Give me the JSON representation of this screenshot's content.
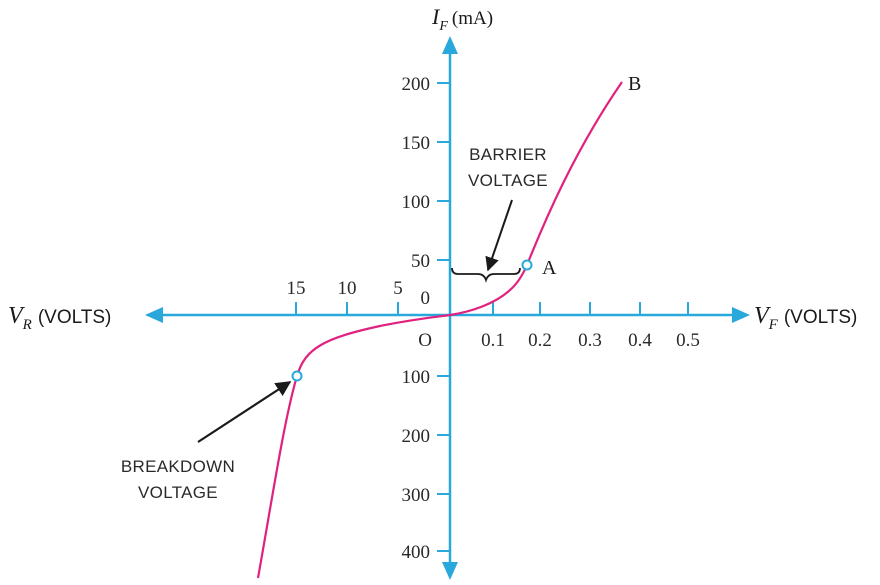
{
  "diagram": {
    "colors": {
      "axis": "#29a8dc",
      "curve": "#e0217f",
      "text": "#2a2a2a"
    },
    "axes": {
      "y_label_main": "I",
      "y_label_sub": "F",
      "y_label_unit": "(mA)",
      "x_pos_label_main": "V",
      "x_pos_label_sub": "F",
      "x_pos_label_unit": "(VOLTS)",
      "x_neg_label_main": "V",
      "x_neg_label_sub": "R",
      "x_neg_label_unit": "(VOLTS)",
      "origin_label": "O",
      "zero_label": "0"
    },
    "ticks": {
      "forward_voltage": [
        "0.1",
        "0.2",
        "0.3",
        "0.4",
        "0.5"
      ],
      "reverse_voltage": [
        "5",
        "10",
        "15"
      ],
      "forward_current": [
        "50",
        "100",
        "150",
        "200"
      ],
      "reverse_current": [
        "100",
        "200",
        "300",
        "400"
      ]
    },
    "points": {
      "a_label": "A",
      "b_label": "B"
    },
    "annotations": {
      "barrier_line1": "BARRIER",
      "barrier_line2": "VOLTAGE",
      "breakdown_line1": "BREAKDOWN",
      "breakdown_line2": "VOLTAGE"
    }
  }
}
